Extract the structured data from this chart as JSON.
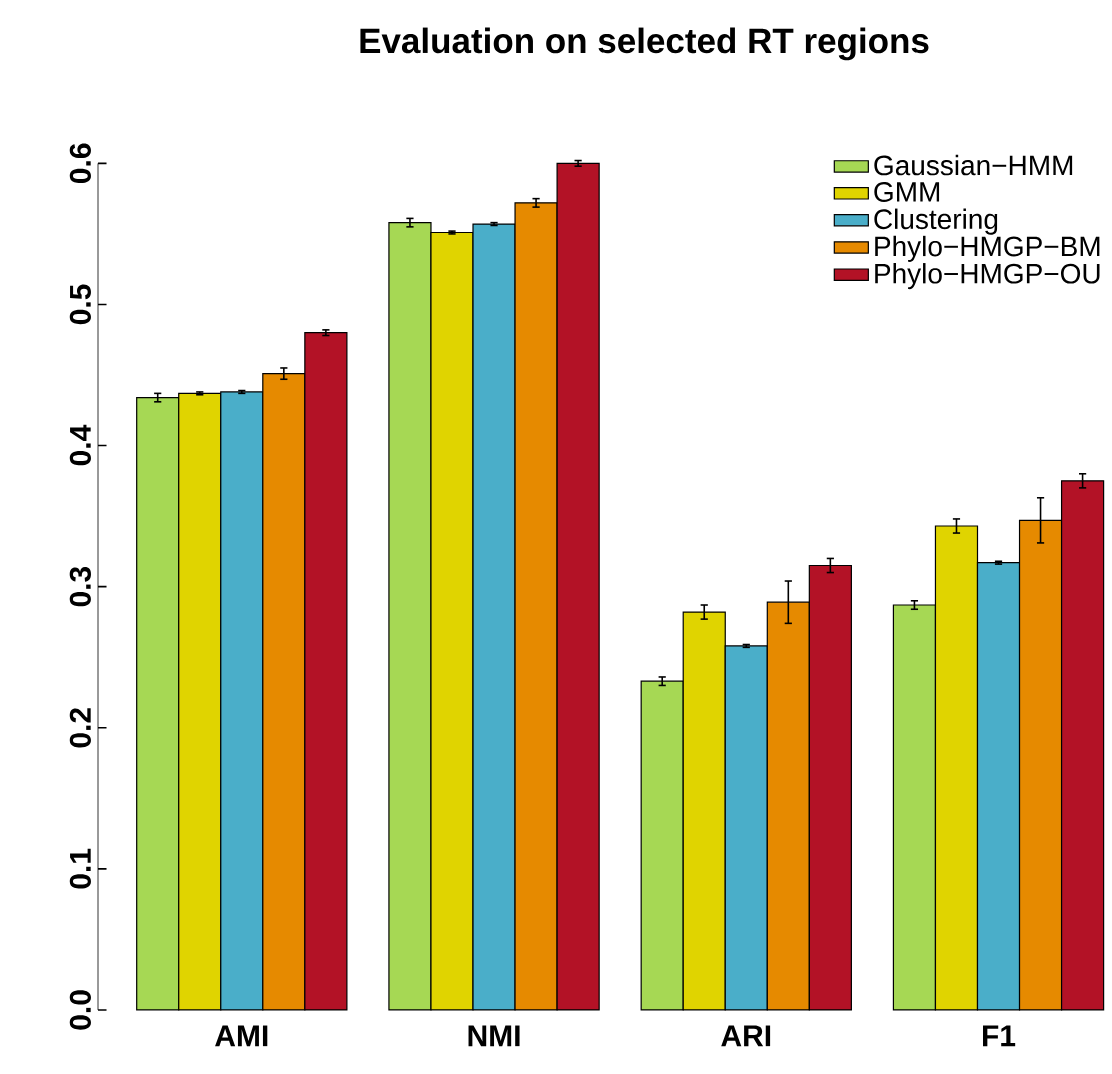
{
  "chart_data": {
    "type": "bar",
    "title": "Evaluation on selected RT regions",
    "categories": [
      "AMI",
      "NMI",
      "ARI",
      "F1"
    ],
    "series": [
      {
        "name": "Gaussian−HMM",
        "color": "#a6d854",
        "values": [
          0.434,
          0.558,
          0.233,
          0.287
        ],
        "errors": [
          0.003,
          0.003,
          0.003,
          0.003
        ]
      },
      {
        "name": "GMM",
        "color": "#e0d400",
        "values": [
          0.437,
          0.551,
          0.282,
          0.343
        ],
        "errors": [
          0.001,
          0.001,
          0.005,
          0.005
        ]
      },
      {
        "name": "Clustering",
        "color": "#4aaec9",
        "values": [
          0.438,
          0.557,
          0.258,
          0.317
        ],
        "errors": [
          0.001,
          0.001,
          0.001,
          0.001
        ]
      },
      {
        "name": "Phylo−HMGP−BM",
        "color": "#e68a00",
        "values": [
          0.451,
          0.572,
          0.289,
          0.347
        ],
        "errors": [
          0.004,
          0.003,
          0.015,
          0.016
        ]
      },
      {
        "name": "Phylo−HMGP−OU",
        "color": "#b31226",
        "values": [
          0.48,
          0.6,
          0.315,
          0.375
        ],
        "errors": [
          0.002,
          0.002,
          0.005,
          0.005
        ]
      }
    ],
    "ylim": [
      0,
      0.6
    ],
    "yticks": [
      {
        "value": 0,
        "label": "0.0"
      },
      0.1,
      0.2,
      0.3,
      0.4,
      0.5,
      0.6
    ],
    "legend": "top right"
  }
}
